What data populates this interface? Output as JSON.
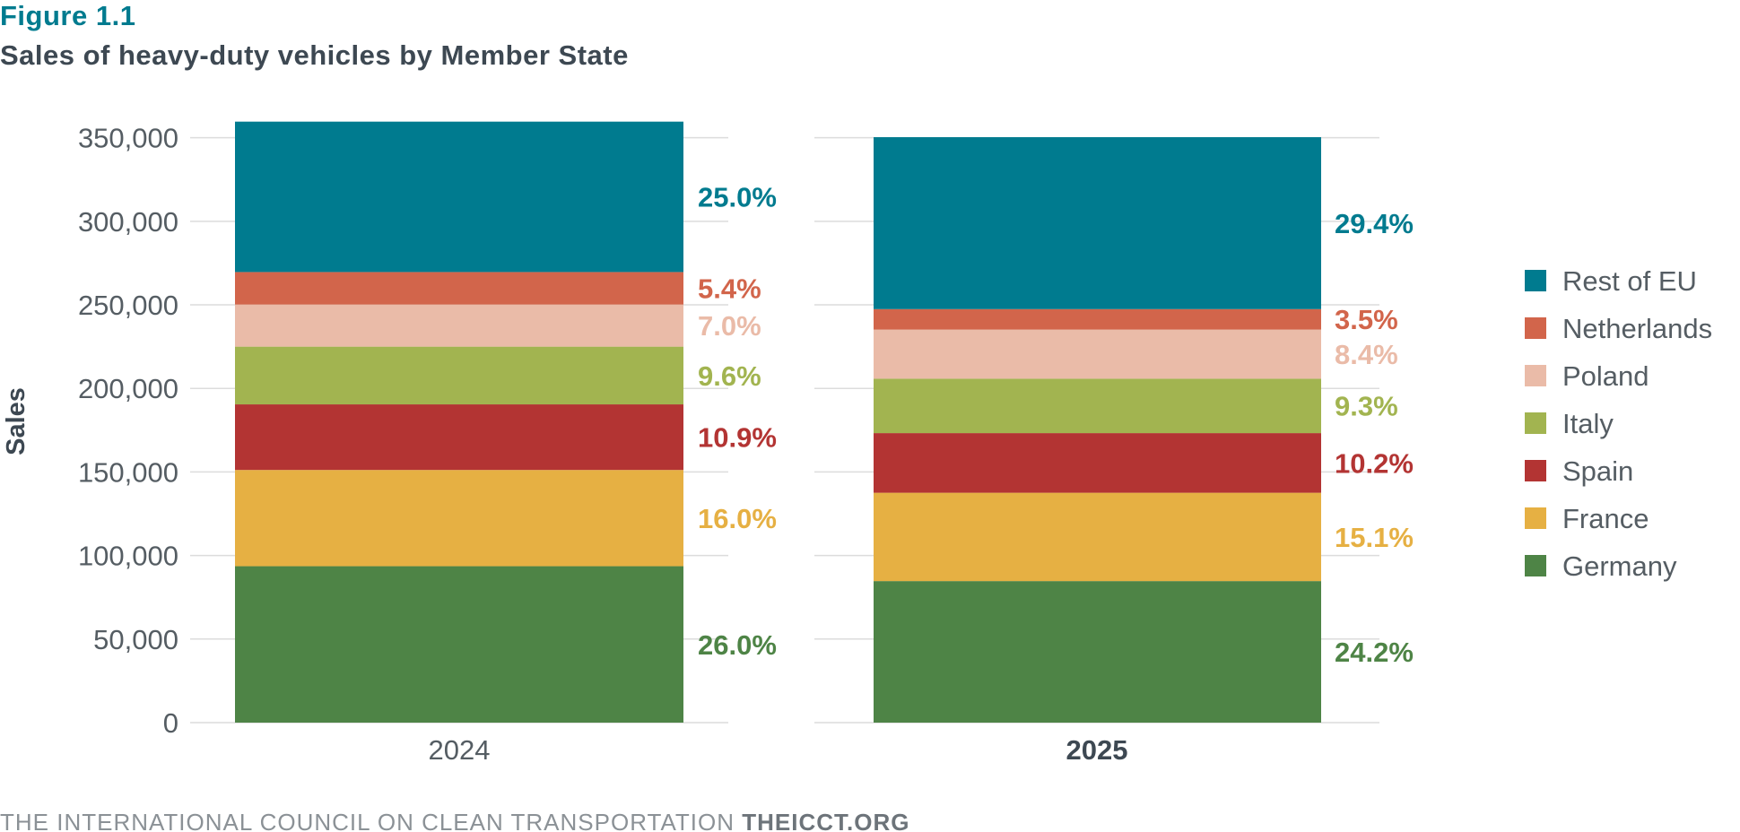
{
  "header": {
    "figure_label": "Figure 1.1",
    "title": "Sales of heavy-duty vehicles by Member State"
  },
  "footer": {
    "org_text": "THE INTERNATIONAL COUNCIL ON CLEAN TRANSPORTATION",
    "site_text": "THEICCT.ORG"
  },
  "chart_data": {
    "type": "bar",
    "stacked": true,
    "title": "Sales of heavy-duty vehicles by Member State",
    "xlabel": "",
    "ylabel": "Sales",
    "ylim": [
      0,
      360000
    ],
    "yticks": [
      0,
      50000,
      100000,
      150000,
      200000,
      250000,
      300000,
      350000
    ],
    "ytick_labels": [
      "0",
      "50,000",
      "100,000",
      "150,000",
      "200,000",
      "250,000",
      "300,000",
      "350,000"
    ],
    "grid": true,
    "legend_position": "right",
    "categories": [
      "2024",
      "2025"
    ],
    "series": [
      {
        "name": "Germany",
        "color": "#4e8446",
        "values": [
          93600,
          84700
        ],
        "labels": [
          "26.0%",
          "24.2%"
        ]
      },
      {
        "name": "France",
        "color": "#e6b043",
        "values": [
          57600,
          52850
        ],
        "labels": [
          "16.0%",
          "15.1%"
        ]
      },
      {
        "name": "Spain",
        "color": "#b33433",
        "values": [
          39240,
          35700
        ],
        "labels": [
          "10.9%",
          "10.2%"
        ]
      },
      {
        "name": "Italy",
        "color": "#a2b450",
        "values": [
          34560,
          32550
        ],
        "labels": [
          "9.6%",
          "9.3%"
        ]
      },
      {
        "name": "Poland",
        "color": "#eabba8",
        "values": [
          25200,
          29400
        ],
        "labels": [
          "7.0%",
          "8.4%"
        ]
      },
      {
        "name": "Netherlands",
        "color": "#d2654b",
        "values": [
          19440,
          12250
        ],
        "labels": [
          "5.4%",
          "3.5%"
        ]
      },
      {
        "name": "Rest of EU",
        "color": "#007b8f",
        "values": [
          90000,
          102900
        ],
        "labels": [
          "25.0%",
          "29.4%"
        ]
      }
    ],
    "legend_order": [
      "Rest of EU",
      "Netherlands",
      "Poland",
      "Italy",
      "Spain",
      "France",
      "Germany"
    ]
  }
}
